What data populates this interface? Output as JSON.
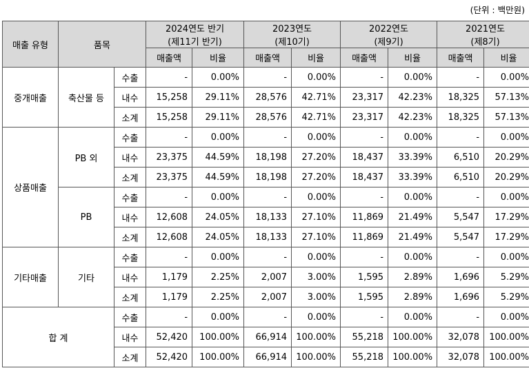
{
  "unit_note": "(단위 : 백만원)",
  "headers": {
    "type": "매출 유형",
    "item": "품목",
    "periods": [
      {
        "line1": "2024연도 반기",
        "line2": "(제11기 반기)"
      },
      {
        "line1": "2023연도",
        "line2": "(제10기)"
      },
      {
        "line1": "2022연도",
        "line2": "(제9기)"
      },
      {
        "line1": "2021연도",
        "line2": "(제8기)"
      }
    ],
    "amount": "매출액",
    "ratio": "비율"
  },
  "groups": [
    {
      "type": "중개매출",
      "items": [
        {
          "name": "축산물 등",
          "rows": [
            {
              "kind": "수출",
              "vals": [
                "-",
                "0.00%",
                "-",
                "0.00%",
                "-",
                "0.00%",
                "-",
                "0.00%"
              ]
            },
            {
              "kind": "내수",
              "vals": [
                "15,258",
                "29.11%",
                "28,576",
                "42.71%",
                "23,317",
                "42.23%",
                "18,325",
                "57.13%"
              ]
            },
            {
              "kind": "소계",
              "vals": [
                "15,258",
                "29.11%",
                "28,576",
                "42.71%",
                "23,317",
                "42.23%",
                "18,325",
                "57.13%"
              ]
            }
          ]
        }
      ]
    },
    {
      "type": "상품매출",
      "items": [
        {
          "name": "PB 외",
          "rows": [
            {
              "kind": "수출",
              "vals": [
                "-",
                "0.00%",
                "-",
                "0.00%",
                "-",
                "0.00%",
                "-",
                "0.00%"
              ]
            },
            {
              "kind": "내수",
              "vals": [
                "23,375",
                "44.59%",
                "18,198",
                "27.20%",
                "18,437",
                "33.39%",
                "6,510",
                "20.29%"
              ]
            },
            {
              "kind": "소계",
              "vals": [
                "23,375",
                "44.59%",
                "18,198",
                "27.20%",
                "18,437",
                "33.39%",
                "6,510",
                "20.29%"
              ]
            }
          ]
        },
        {
          "name": "PB",
          "rows": [
            {
              "kind": "수출",
              "vals": [
                "-",
                "0.00%",
                "-",
                "0.00%",
                "-",
                "0.00%",
                "-",
                "0.00%"
              ]
            },
            {
              "kind": "내수",
              "vals": [
                "12,608",
                "24.05%",
                "18,133",
                "27.10%",
                "11,869",
                "21.49%",
                "5,547",
                "17.29%"
              ]
            },
            {
              "kind": "소계",
              "vals": [
                "12,608",
                "24.05%",
                "18,133",
                "27.10%",
                "11,869",
                "21.49%",
                "5,547",
                "17.29%"
              ]
            }
          ]
        }
      ]
    },
    {
      "type": "기타매출",
      "items": [
        {
          "name": "기타",
          "rows": [
            {
              "kind": "수출",
              "vals": [
                "-",
                "0.00%",
                "-",
                "0.00%",
                "-",
                "0.00%",
                "-",
                "0.00%"
              ]
            },
            {
              "kind": "내수",
              "vals": [
                "1,179",
                "2.25%",
                "2,007",
                "3.00%",
                "1,595",
                "2.89%",
                "1,696",
                "5.29%"
              ]
            },
            {
              "kind": "소계",
              "vals": [
                "1,179",
                "2.25%",
                "2,007",
                "3.00%",
                "1,595",
                "2.89%",
                "1,696",
                "5.29%"
              ]
            }
          ]
        }
      ]
    }
  ],
  "total": {
    "label": "합 계",
    "rows": [
      {
        "kind": "수출",
        "vals": [
          "-",
          "0.00%",
          "-",
          "0.00%",
          "-",
          "0.00%",
          "-",
          "0.00%"
        ]
      },
      {
        "kind": "내수",
        "vals": [
          "52,420",
          "100.00%",
          "66,914",
          "100.00%",
          "55,218",
          "100.00%",
          "32,078",
          "100.00%"
        ]
      },
      {
        "kind": "소계",
        "vals": [
          "52,420",
          "100.00%",
          "66,914",
          "100.00%",
          "55,218",
          "100.00%",
          "32,078",
          "100.00%"
        ]
      }
    ]
  }
}
